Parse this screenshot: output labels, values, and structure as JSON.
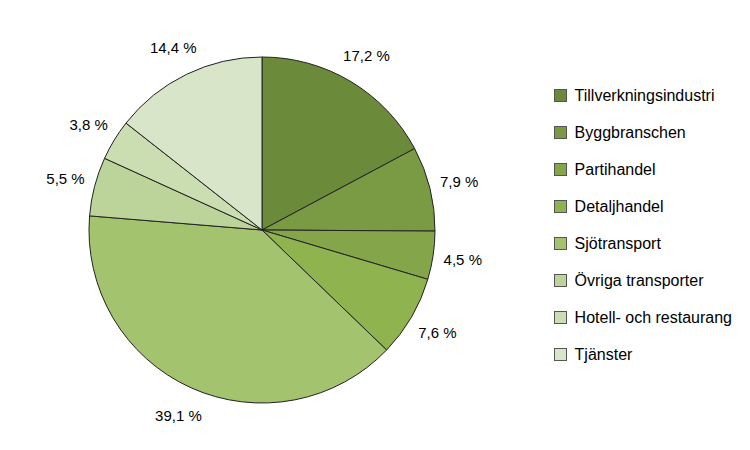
{
  "chart_data": {
    "type": "pie",
    "categories": [
      "Tillverkningsindustri",
      "Byggbranschen",
      "Partihandel",
      "Detaljhandel",
      "Sjötransport",
      "Övriga transporter",
      "Hotell- och restaurang",
      "Tjänster"
    ],
    "values": [
      17.2,
      7.9,
      4.5,
      7.6,
      39.1,
      5.5,
      3.8,
      14.4
    ],
    "value_labels": [
      "17,2 %",
      "7,9 %",
      "4,5 %",
      "7,6 %",
      "39,1 %",
      "5,5 %",
      "3,8 %",
      "14,4 %"
    ],
    "colors": [
      "#6b8a3a",
      "#7a9a44",
      "#84a54a",
      "#8fb34f",
      "#a4c36e",
      "#bcd39a",
      "#cadeb1",
      "#d9e5c8"
    ],
    "data_labels": true,
    "legend": "right"
  }
}
